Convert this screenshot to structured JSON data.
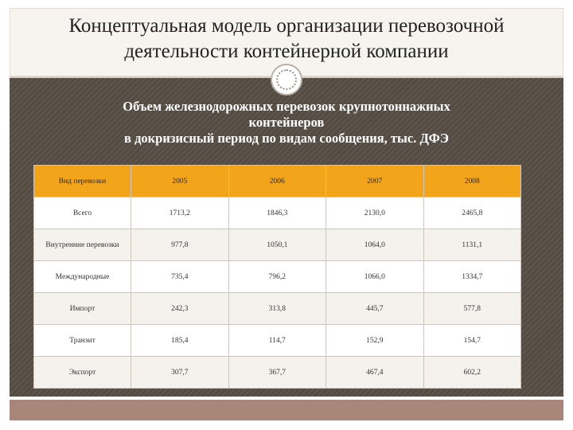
{
  "slide": {
    "title_line1": "Концептуальная модель организации перевозочной",
    "title_line2": "деятельности контейнерной компании",
    "subtitle_line1": "Объем железнодорожных перевозок крупнотоннажных",
    "subtitle_line2": "контейнеров",
    "subtitle_line3": "в докризисный период по видам сообщения, тыс. ДФЭ"
  },
  "table": {
    "headers": [
      "Вид перевозки",
      "2005",
      "2006",
      "2007",
      "2008"
    ],
    "rows": [
      [
        "Всего",
        "1713,2",
        "1846,3",
        "2130,0",
        "2465,8"
      ],
      [
        "Внутренние перевозки",
        "977,8",
        "1050,1",
        "1064,0",
        "1131,1"
      ],
      [
        "Международные",
        "735,4",
        "796,2",
        "1066,0",
        "1334,7"
      ],
      [
        "Импорт",
        "242,3",
        "313,8",
        "445,7",
        "577,8"
      ],
      [
        "Транзит",
        "185,4",
        "114,7",
        "152,9",
        "154,7"
      ],
      [
        "Экспорт",
        "307,7",
        "367,7",
        "467,4",
        "602,2"
      ]
    ]
  },
  "colors": {
    "header_bg": "#f2a51a",
    "panel_bg": "#544b42",
    "bottom_bar": "#a8877a",
    "title_bg": "#f7f3ee"
  }
}
